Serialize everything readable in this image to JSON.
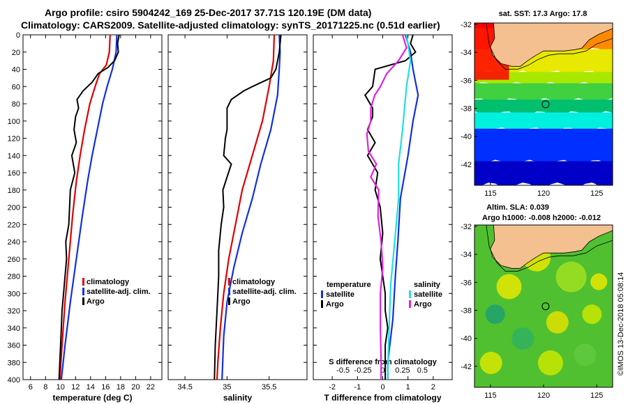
{
  "header": {
    "line1": "Argo profile: csiro 5904242_169 25-Dec-2017 37.71S 120.19E (DM data)",
    "line2": "Climatology: CARS2009. Satellite-adjusted climatology: synTS_20171225.nc (0.51d earlier)"
  },
  "colors": {
    "argo": "#000000",
    "clim": "#e00000",
    "sat": "#1030e0",
    "sat_s": "#20e0e0",
    "clim_s": "#e020e0"
  },
  "chart_data": [
    {
      "type": "line",
      "id": "temperature",
      "xlabel": "temperature (deg C)",
      "ylabel": "depth",
      "xlim": [
        5,
        23.5
      ],
      "ylim": [
        400,
        0
      ],
      "xticks": [
        6,
        8,
        10,
        12,
        14,
        16,
        18,
        20,
        22
      ],
      "yticks": [
        0,
        20,
        40,
        60,
        80,
        100,
        120,
        140,
        160,
        180,
        200,
        220,
        240,
        260,
        280,
        300,
        320,
        340,
        360,
        380,
        400
      ],
      "legend": [
        "climatology",
        "satellite-adj. clim.",
        "Argo"
      ],
      "series": [
        {
          "name": "climatology",
          "color": "clim",
          "points": [
            [
              16.6,
              0
            ],
            [
              16.5,
              20
            ],
            [
              16.1,
              35
            ],
            [
              15.2,
              45
            ],
            [
              14.6,
              60
            ],
            [
              13.9,
              80
            ],
            [
              13.2,
              110
            ],
            [
              12.6,
              140
            ],
            [
              12.1,
              170
            ],
            [
              11.6,
              210
            ],
            [
              11.1,
              260
            ],
            [
              10.6,
              310
            ],
            [
              10.2,
              360
            ],
            [
              9.9,
              400
            ]
          ]
        },
        {
          "name": "satellite-adj. clim.",
          "color": "sat",
          "points": [
            [
              17.5,
              0
            ],
            [
              17.4,
              20
            ],
            [
              16.9,
              40
            ],
            [
              16.2,
              60
            ],
            [
              15.6,
              80
            ],
            [
              14.9,
              110
            ],
            [
              14.2,
              140
            ],
            [
              13.6,
              170
            ],
            [
              12.9,
              210
            ],
            [
              12.1,
              260
            ],
            [
              11.3,
              310
            ],
            [
              10.6,
              360
            ],
            [
              10.1,
              400
            ]
          ]
        },
        {
          "name": "Argo",
          "color": "argo",
          "points": [
            [
              17.8,
              0
            ],
            [
              17.6,
              10
            ],
            [
              17.7,
              20
            ],
            [
              17.2,
              30
            ],
            [
              16.3,
              38
            ],
            [
              15.0,
              45
            ],
            [
              14.2,
              55
            ],
            [
              13.0,
              65
            ],
            [
              12.2,
              75
            ],
            [
              12.4,
              85
            ],
            [
              12.0,
              95
            ],
            [
              11.8,
              110
            ],
            [
              12.1,
              125
            ],
            [
              11.5,
              140
            ],
            [
              11.9,
              160
            ],
            [
              11.3,
              180
            ],
            [
              11.2,
              200
            ],
            [
              11.1,
              220
            ],
            [
              10.7,
              240
            ],
            [
              10.8,
              260
            ],
            [
              10.6,
              280
            ],
            [
              10.4,
              300
            ],
            [
              10.2,
              320
            ],
            [
              10.1,
              340
            ],
            [
              10.0,
              360
            ],
            [
              9.9,
              380
            ],
            [
              9.8,
              400
            ]
          ]
        }
      ]
    },
    {
      "type": "line",
      "id": "salinity",
      "xlabel": "salinity",
      "ylabel": "depth",
      "xlim": [
        34.3,
        35.95
      ],
      "ylim": [
        400,
        0
      ],
      "xticks": [
        34.5,
        35,
        35.5
      ],
      "legend": [
        "climatology",
        "satellite-adj. clim.",
        "Argo"
      ],
      "series": [
        {
          "name": "climatology",
          "color": "clim",
          "points": [
            [
              35.56,
              0
            ],
            [
              35.55,
              30
            ],
            [
              35.5,
              60
            ],
            [
              35.42,
              100
            ],
            [
              35.3,
              140
            ],
            [
              35.18,
              180
            ],
            [
              35.1,
              220
            ],
            [
              35.02,
              260
            ],
            [
              34.96,
              300
            ],
            [
              34.92,
              340
            ],
            [
              34.89,
              380
            ],
            [
              34.88,
              400
            ]
          ]
        },
        {
          "name": "satellite-adj. clim.",
          "color": "sat",
          "points": [
            [
              35.62,
              0
            ],
            [
              35.63,
              20
            ],
            [
              35.62,
              40
            ],
            [
              35.6,
              70
            ],
            [
              35.52,
              110
            ],
            [
              35.4,
              150
            ],
            [
              35.3,
              190
            ],
            [
              35.18,
              230
            ],
            [
              35.08,
              270
            ],
            [
              35.0,
              310
            ],
            [
              34.96,
              350
            ],
            [
              34.94,
              400
            ]
          ]
        },
        {
          "name": "Argo",
          "color": "argo",
          "points": [
            [
              35.64,
              0
            ],
            [
              35.62,
              20
            ],
            [
              35.58,
              40
            ],
            [
              35.52,
              50
            ],
            [
              35.3,
              60
            ],
            [
              35.2,
              65
            ],
            [
              35.05,
              75
            ],
            [
              35.0,
              85
            ],
            [
              35.0,
              110
            ],
            [
              34.98,
              120
            ],
            [
              34.96,
              140
            ],
            [
              35.05,
              150
            ],
            [
              35.0,
              165
            ],
            [
              34.95,
              180
            ],
            [
              34.96,
              200
            ],
            [
              34.93,
              220
            ],
            [
              34.9,
              250
            ],
            [
              34.9,
              280
            ],
            [
              34.88,
              320
            ],
            [
              34.86,
              360
            ],
            [
              34.85,
              400
            ]
          ]
        }
      ]
    },
    {
      "type": "line",
      "id": "difference",
      "xlabel": "T difference from climatology",
      "x2label": "S difference from climatology",
      "xlim": [
        -2.75,
        2.75
      ],
      "ylim": [
        400,
        0
      ],
      "xticks": [
        -2,
        -1,
        0,
        1,
        2
      ],
      "x2ticks": [
        -0.5,
        -0.25,
        0,
        0.25,
        0.5
      ],
      "legend_left": {
        "title": "temperature",
        "items": [
          "satellite",
          "Argo"
        ]
      },
      "legend_right": {
        "title": "salinity",
        "items": [
          "satellite",
          "Argo"
        ]
      },
      "series": [
        {
          "name": "T satellite",
          "color": "sat",
          "points": [
            [
              0.9,
              0
            ],
            [
              1.1,
              20
            ],
            [
              1.2,
              40
            ],
            [
              1.4,
              70
            ],
            [
              1.2,
              100
            ],
            [
              1.0,
              140
            ],
            [
              0.7,
              190
            ],
            [
              0.6,
              240
            ],
            [
              0.5,
              280
            ],
            [
              0.4,
              330
            ],
            [
              0.2,
              380
            ],
            [
              0.2,
              400
            ]
          ]
        },
        {
          "name": "T Argo",
          "color": "argo",
          "points": [
            [
              1.2,
              0
            ],
            [
              1.1,
              10
            ],
            [
              1.3,
              20
            ],
            [
              0.9,
              30
            ],
            [
              -0.3,
              40
            ],
            [
              -0.4,
              60
            ],
            [
              -0.7,
              70
            ],
            [
              -0.4,
              85
            ],
            [
              -0.4,
              95
            ],
            [
              -0.6,
              110
            ],
            [
              -0.3,
              125
            ],
            [
              -0.6,
              140
            ],
            [
              -0.2,
              160
            ],
            [
              -0.3,
              180
            ],
            [
              -0.1,
              200
            ],
            [
              0.0,
              230
            ],
            [
              -0.1,
              260
            ],
            [
              0.0,
              280
            ],
            [
              0.1,
              300
            ],
            [
              0.1,
              320
            ],
            [
              0.2,
              340
            ],
            [
              0.1,
              360
            ],
            [
              0.1,
              380
            ],
            [
              0.1,
              400
            ]
          ]
        },
        {
          "name": "S satellite",
          "color": "sat_s",
          "points": [
            [
              0.3,
              0
            ],
            [
              0.35,
              30
            ],
            [
              0.3,
              60
            ],
            [
              0.25,
              110
            ],
            [
              0.2,
              150
            ],
            [
              0.2,
              190
            ],
            [
              0.15,
              240
            ],
            [
              0.1,
              290
            ],
            [
              0.08,
              340
            ],
            [
              0.06,
              400
            ]
          ]
        },
        {
          "name": "S Argo",
          "color": "clim_s",
          "points": [
            [
              0.25,
              0
            ],
            [
              0.3,
              15
            ],
            [
              0.2,
              30
            ],
            [
              0.05,
              45
            ],
            [
              -0.03,
              60
            ],
            [
              -0.1,
              70
            ],
            [
              -0.15,
              85
            ],
            [
              -0.15,
              100
            ],
            [
              -0.2,
              115
            ],
            [
              -0.18,
              135
            ],
            [
              -0.08,
              150
            ],
            [
              -0.15,
              165
            ],
            [
              -0.05,
              180
            ],
            [
              -0.06,
              210
            ],
            [
              -0.02,
              240
            ],
            [
              0.0,
              270
            ],
            [
              -0.03,
              300
            ],
            [
              -0.03,
              340
            ],
            [
              -0.02,
              380
            ],
            [
              -0.02,
              400
            ]
          ]
        }
      ]
    }
  ],
  "maps": {
    "sst": {
      "title": "sat. SST: 17.3 Argo: 17.8",
      "lat_ticks": [
        -32,
        -34,
        -36,
        -38,
        -40,
        -42
      ],
      "lon_ticks": [
        115,
        120,
        125
      ]
    },
    "sla": {
      "title": "Altim. SLA: 0.039",
      "subtitle": "Argo h1000: -0.008 h2000: -0.012",
      "lat_ticks": [
        -32,
        -34,
        -36,
        -38,
        -40,
        -42
      ],
      "lon_ticks": [
        115,
        120,
        125
      ]
    },
    "lon_range": [
      113.5,
      126.5
    ],
    "lat_range": [
      -43.5,
      -31.9
    ],
    "argo_position": {
      "lon": 120.19,
      "lat": -37.71
    }
  },
  "footer": {
    "credit": "©IMOS 13-Dec-2018 05:08:14"
  }
}
